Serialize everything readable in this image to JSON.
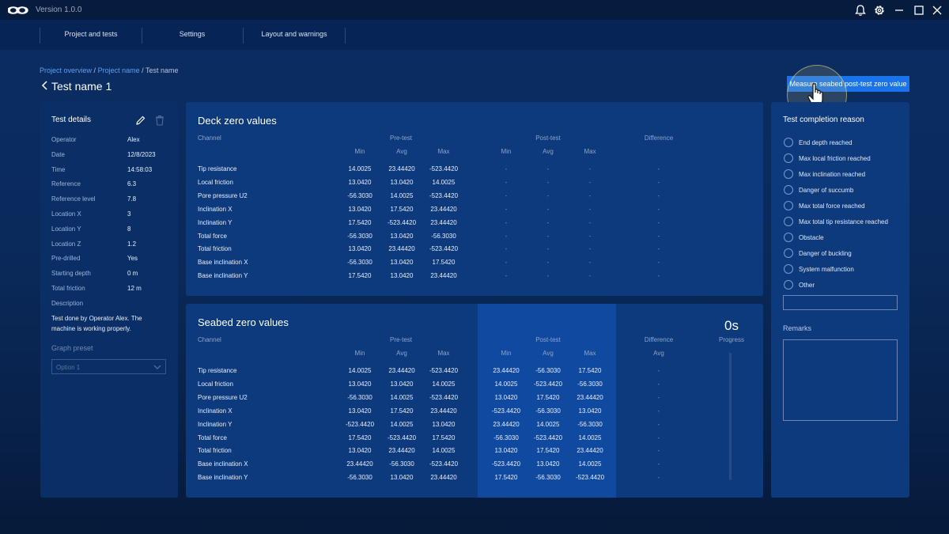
{
  "app": {
    "version": "Version 1.0.0"
  },
  "nav": {
    "items": [
      "Project and tests",
      "Settings",
      "Layout and warnings"
    ]
  },
  "breadcrumb": {
    "items": [
      "Project overview",
      "Project name",
      "Test name"
    ]
  },
  "page": {
    "title": "Test name 1"
  },
  "action": {
    "measure_button": "Measure seabed post-test zero value"
  },
  "details": {
    "title": "Test details",
    "rows": [
      {
        "label": "Operator",
        "value": "Alex"
      },
      {
        "label": "Date",
        "value": "12/8/2023"
      },
      {
        "label": "Time",
        "value": "14:58:03"
      },
      {
        "label": "Reference",
        "value": "6.3"
      },
      {
        "label": "Reference level",
        "value": "7.8"
      },
      {
        "label": "Location X",
        "value": "3"
      },
      {
        "label": "Location Y",
        "value": "8"
      },
      {
        "label": "Location Z",
        "value": "1.2"
      },
      {
        "label": "Pre-drilled",
        "value": "Yes"
      },
      {
        "label": "Starting depth",
        "value": "0 m"
      },
      {
        "label": "Total friction",
        "value": "12 m"
      }
    ],
    "description_label": "Description",
    "description": "Test done by Operator Alex. The machine is working properly.",
    "graph_preset_label": "Graph preset",
    "graph_preset_placeholder": "Option 1"
  },
  "deck": {
    "title": "Deck zero values",
    "channel_header": "Channel",
    "groups": [
      "Pre-test",
      "Post-test",
      "Difference"
    ],
    "sub": [
      "Min",
      "Avg",
      "Max"
    ],
    "rows": [
      {
        "channel": "Tip resistance",
        "pre": [
          "14.0025",
          "23.44420",
          "-523.4420"
        ]
      },
      {
        "channel": "Local friction",
        "pre": [
          "13.0420",
          "13.0420",
          "14.0025"
        ]
      },
      {
        "channel": "Pore pressure U2",
        "pre": [
          "-56.3030",
          "14.0025",
          "-523.4420"
        ]
      },
      {
        "channel": "Inclination X",
        "pre": [
          "13.0420",
          "17.5420",
          "23.44420"
        ]
      },
      {
        "channel": "Inclination Y",
        "pre": [
          "17.5420",
          "-523.4420",
          "23.44420"
        ]
      },
      {
        "channel": "Total force",
        "pre": [
          "-56.3030",
          "13.0420",
          "-56.3030"
        ]
      },
      {
        "channel": "Total friction",
        "pre": [
          "13.0420",
          "23.44420",
          "-523.4420"
        ]
      },
      {
        "channel": "Base inclination X",
        "pre": [
          "-56.3030",
          "13.0420",
          "17.5420"
        ]
      },
      {
        "channel": "Base inclination Y",
        "pre": [
          "17.5420",
          "13.0420",
          "23.44420"
        ]
      }
    ],
    "empty": "-"
  },
  "seabed": {
    "title": "Seabed zero values",
    "channel_header": "Channel",
    "groups": [
      "Pre-test",
      "Post-test",
      "Difference"
    ],
    "sub": [
      "Min",
      "Avg",
      "Max"
    ],
    "diff_sub": "Avg",
    "progress_value": "0s",
    "progress_label": "Progress",
    "rows": [
      {
        "channel": "Tip resistance",
        "pre": [
          "14.0025",
          "23.44420",
          "-523.4420"
        ],
        "post": [
          "23.44420",
          "-56.3030",
          "17.5420"
        ]
      },
      {
        "channel": "Local friction",
        "pre": [
          "13.0420",
          "13.0420",
          "14.0025"
        ],
        "post": [
          "14.0025",
          "-523.4420",
          "-56.3030"
        ]
      },
      {
        "channel": "Pore pressure U2",
        "pre": [
          "-56.3030",
          "14.0025",
          "-523.4420"
        ],
        "post": [
          "13.0420",
          "17.5420",
          "23.44420"
        ]
      },
      {
        "channel": "Inclination X",
        "pre": [
          "13.0420",
          "17.5420",
          "23.44420"
        ],
        "post": [
          "-523.4420",
          "-56.3030",
          "13.0420"
        ]
      },
      {
        "channel": "Inclination Y",
        "pre": [
          "-523.4420",
          "14.0025",
          "13.0420"
        ],
        "post": [
          "23.44420",
          "14.0025",
          "-56.3030"
        ]
      },
      {
        "channel": "Total force",
        "pre": [
          "17.5420",
          "-523.4420",
          "17.5420"
        ],
        "post": [
          "-56.3030",
          "-523.4420",
          "14.0025"
        ]
      },
      {
        "channel": "Total friction",
        "pre": [
          "13.0420",
          "23.44420",
          "14.0025"
        ],
        "post": [
          "13.0420",
          "17.5420",
          "23.44420"
        ]
      },
      {
        "channel": "Base inclination X",
        "pre": [
          "23.44420",
          "-56.3030",
          "-523.4420"
        ],
        "post": [
          "-523.4420",
          "13.0420",
          "14.0025"
        ]
      },
      {
        "channel": "Base inclination Y",
        "pre": [
          "-56.3030",
          "13.0420",
          "23.44420"
        ],
        "post": [
          "17.5420",
          "-56.3030",
          "-523.4420"
        ]
      }
    ],
    "empty": "-"
  },
  "completion": {
    "title": "Test completion reason",
    "options": [
      "End depth reached",
      "Max local friction reached",
      "Max inclination reached",
      "Danger of succumb",
      "Max total force reached",
      "Max total tip resistance reached",
      "Obstacle",
      "Danger of buckling",
      "System malfunction",
      "Other"
    ],
    "remarks_label": "Remarks"
  },
  "icons": {
    "logo": "infinity-logo-icon",
    "bell": "bell-icon",
    "gear": "gear-icon",
    "minimize": "minimize-icon",
    "maximize": "maximize-icon",
    "close": "close-icon",
    "edit": "pencil-icon",
    "delete": "trash-icon",
    "back": "chevron-left-icon",
    "dropdown": "chevron-down-icon",
    "cursor": "hand-pointer-icon"
  },
  "colors": {
    "accent": "#1a73e8",
    "link": "#5ea0f0",
    "panel": "#0c3a7c",
    "highlight_column": "#0f4aa0"
  }
}
